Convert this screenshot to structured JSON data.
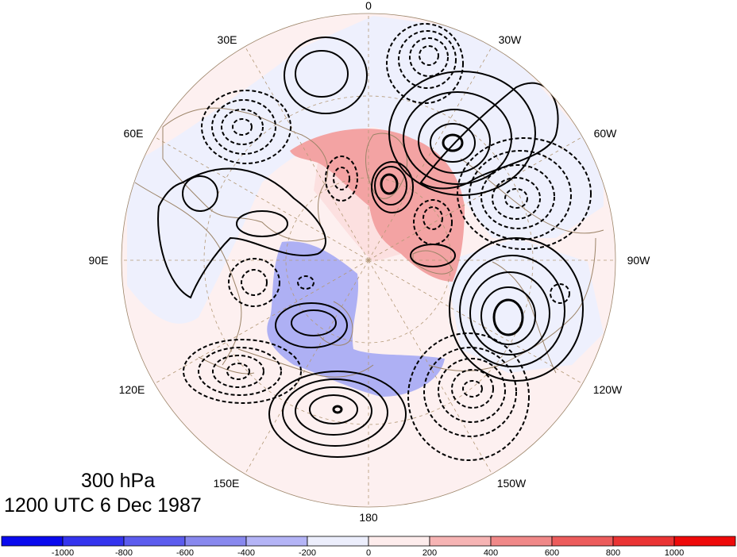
{
  "title": {
    "level": "300 hPa",
    "time": "1200 UTC 6 Dec 1987"
  },
  "map": {
    "projection": "north polar stereographic",
    "longitude_labels": [
      "0",
      "30W",
      "60W",
      "90W",
      "120W",
      "150W",
      "180",
      "150E",
      "120E",
      "90E",
      "60E",
      "30E"
    ],
    "contour_styles": [
      "solid (positive)",
      "dashed (negative)"
    ],
    "coastline_color": "#9c8468",
    "graticule_color": "#b49a78"
  },
  "colorbar": {
    "labels": [
      "-1000",
      "-800",
      "-600",
      "-400",
      "-200",
      "0",
      "200",
      "400",
      "600",
      "800",
      "1000"
    ],
    "colors": [
      "#0a0aee",
      "#3434ee",
      "#5c5cee",
      "#8888ee",
      "#b4b4f6",
      "#eceefc",
      "#fdecec",
      "#f6b4b4",
      "#f08888",
      "#ec5c5c",
      "#ea3434",
      "#ee0a0a"
    ]
  }
}
